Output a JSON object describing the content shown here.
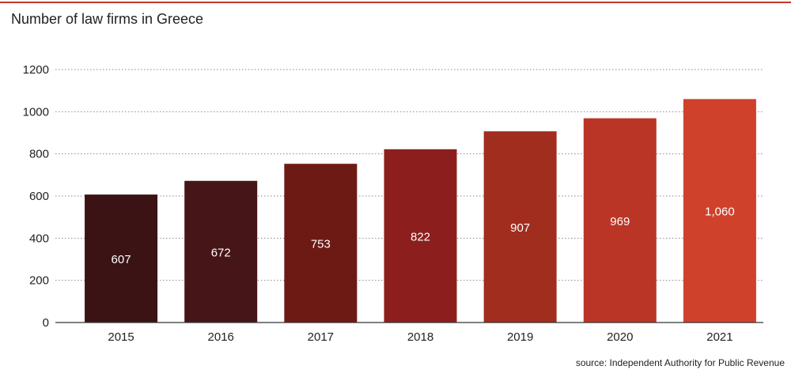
{
  "title": "Number of law firms in Greece",
  "source": "source: Independent Authority for Public Revenue",
  "chart_data": {
    "type": "bar",
    "title": "Number of law firms in Greece",
    "xlabel": "",
    "ylabel": "",
    "categories": [
      "2015",
      "2016",
      "2017",
      "2018",
      "2019",
      "2020",
      "2021"
    ],
    "values": [
      607,
      672,
      753,
      822,
      907,
      969,
      1060
    ],
    "value_labels": [
      "607",
      "672",
      "753",
      "822",
      "907",
      "969",
      "1,060"
    ],
    "ylim": [
      0,
      1200
    ],
    "yticks": [
      0,
      200,
      400,
      600,
      800,
      1000,
      1200
    ],
    "grid": true,
    "legend": "none",
    "colors": [
      "#3b1315",
      "#461517",
      "#6e1a14",
      "#8c1f1d",
      "#a12d1f",
      "#bb3526",
      "#d0412c"
    ],
    "label_color": "#ffffff",
    "accent_color": "#c0392b"
  }
}
